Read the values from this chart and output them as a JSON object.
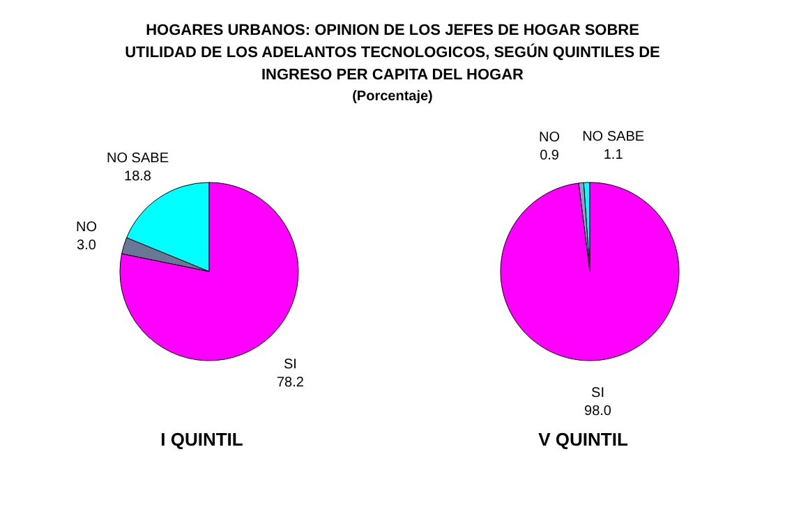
{
  "chart_data": [
    {
      "type": "pie",
      "title": "HOGARES URBANOS: OPINION DE LOS JEFES DE HOGAR SOBRE UTILIDAD DE LOS ADELANTOS TECNOLOGICOS, SEGÚN QUINTILES DE INGRESO PER CAPITA DEL HOGAR",
      "subtitle": "(Porcentaje)",
      "xlabel": "I QUINTIL",
      "categories": [
        "NO SABE",
        "NO",
        "SI"
      ],
      "values": [
        18.8,
        3.0,
        78.2
      ],
      "value_labels": [
        "18.8",
        "3.0",
        "78.2"
      ],
      "colors": [
        "#00ffff",
        "#6a7898",
        "#ff00ff"
      ]
    },
    {
      "type": "pie",
      "xlabel": "V QUINTIL",
      "categories": [
        "NO SABE",
        "NO",
        "SI"
      ],
      "values": [
        1.1,
        0.9,
        98.0
      ],
      "value_labels": [
        "1.1",
        "0.9",
        "98.0"
      ],
      "colors": [
        "#00ffff",
        "#9999cc",
        "#ff00ff"
      ]
    }
  ]
}
